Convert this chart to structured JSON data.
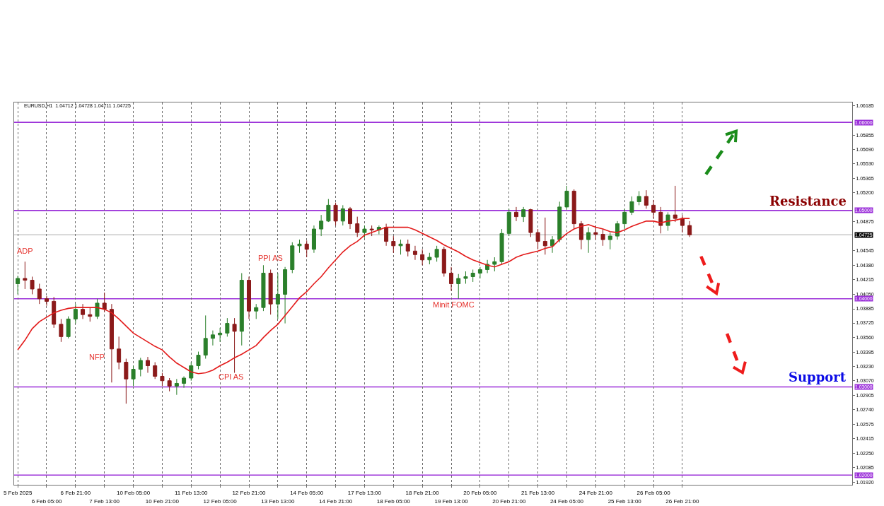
{
  "chart_data": {
    "type": "candlestick",
    "title": "EURUSD,H1  1.04712 1.04728 1.04711 1.04725",
    "categories": [
      "5 Feb 2025",
      null,
      null,
      null,
      "6 Feb 05:00",
      null,
      null,
      null,
      "6 Feb 21:00",
      null,
      null,
      null,
      "7 Feb 13:00",
      null,
      null,
      null,
      "10 Feb 05:00",
      null,
      null,
      null,
      "10 Feb 21:00",
      null,
      null,
      null,
      "11 Feb 13:00",
      null,
      null,
      null,
      "12 Feb 05:00",
      null,
      null,
      null,
      "12 Feb 21:00",
      null,
      null,
      null,
      "13 Feb 13:00",
      null,
      null,
      null,
      "14 Feb 05:00",
      null,
      null,
      null,
      "14 Feb 21:00",
      null,
      null,
      null,
      "17 Feb 13:00",
      null,
      null,
      null,
      "18 Feb 05:00",
      null,
      null,
      null,
      "18 Feb 21:00",
      null,
      null,
      null,
      "19 Feb 13:00",
      null,
      null,
      null,
      "20 Feb 05:00",
      null,
      null,
      null,
      "20 Feb 21:00",
      null,
      null,
      null,
      "21 Feb 13:00",
      null,
      null,
      null,
      "24 Feb 05:00",
      null,
      null,
      null,
      "24 Feb 21:00",
      null,
      null,
      null,
      "25 Feb 13:00",
      null,
      null,
      null,
      "26 Feb 05:00",
      null,
      null,
      null,
      "26 Feb 21:00",
      null,
      null,
      null,
      null,
      null,
      null,
      null,
      null,
      null,
      null,
      null,
      null,
      null,
      null,
      null,
      null,
      null,
      null,
      null,
      null,
      null,
      null,
      null
    ],
    "ylim": [
      1.0189,
      1.06225
    ],
    "yticks": [
      1.06185,
      1.05855,
      {
        "value": 1.0569,
        "label": "1.05690"
      },
      {
        "value": 1.0553,
        "label": "1.05530"
      },
      1.05365,
      {
        "value": 1.052,
        "label": "1.05200"
      },
      1.04875,
      1.04545,
      {
        "value": 1.0438,
        "label": "1.04380"
      },
      1.04215,
      {
        "value": 1.0405,
        "label": "1.04050"
      },
      1.03885,
      1.03725,
      {
        "value": 1.0356,
        "label": "1.03560"
      },
      1.03395,
      {
        "value": 1.0323,
        "label": "1.03230"
      },
      {
        "value": 1.0307,
        "label": "1.03070"
      },
      1.02905,
      {
        "value": 1.0274,
        "label": "1.02740"
      },
      1.02575,
      1.02415,
      {
        "value": 1.0225,
        "label": "1.02250"
      },
      1.02085,
      {
        "value": 1.0192,
        "label": "1.01920"
      }
    ],
    "ohlc": [
      [
        1.0417,
        1.0426,
        1.0405,
        1.0423
      ],
      [
        1.0423,
        1.0442,
        1.0411,
        1.0421
      ],
      [
        1.0421,
        1.0425,
        1.0405,
        1.0411
      ],
      [
        1.0411,
        1.0417,
        1.0394,
        1.04
      ],
      [
        1.04,
        1.0403,
        1.0392,
        1.0397
      ],
      [
        1.0397,
        1.0402,
        1.0367,
        1.0371
      ],
      [
        1.0371,
        1.0377,
        1.0351,
        1.0357
      ],
      [
        1.0357,
        1.038,
        1.0355,
        1.0377
      ],
      [
        1.0377,
        1.0394,
        1.0372,
        1.0388
      ],
      [
        1.0388,
        1.0394,
        1.0377,
        1.0382
      ],
      [
        1.0382,
        1.039,
        1.0374,
        1.038
      ],
      [
        1.038,
        1.04,
        1.0377,
        1.0395
      ],
      [
        1.0395,
        1.0407,
        1.0385,
        1.0388
      ],
      [
        1.0388,
        1.0394,
        1.0305,
        1.0343
      ],
      [
        1.0343,
        1.0357,
        1.032,
        1.0328
      ],
      [
        1.0328,
        1.0332,
        1.0281,
        1.0309
      ],
      [
        1.0309,
        1.0324,
        1.0301,
        1.032
      ],
      [
        1.032,
        1.0333,
        1.0312,
        1.033
      ],
      [
        1.033,
        1.0334,
        1.0316,
        1.0324
      ],
      [
        1.0324,
        1.0328,
        1.0309,
        1.0312
      ],
      [
        1.0312,
        1.0316,
        1.0301,
        1.0307
      ],
      [
        1.0307,
        1.031,
        1.0295,
        1.0301
      ],
      [
        1.0301,
        1.0309,
        1.0291,
        1.0304
      ],
      [
        1.0304,
        1.0312,
        1.0299,
        1.031
      ],
      [
        1.031,
        1.0328,
        1.0307,
        1.0324
      ],
      [
        1.0324,
        1.034,
        1.032,
        1.0336
      ],
      [
        1.0336,
        1.0381,
        1.0332,
        1.0355
      ],
      [
        1.0355,
        1.0364,
        1.0347,
        1.0359
      ],
      [
        1.0359,
        1.0367,
        1.0351,
        1.0361
      ],
      [
        1.0361,
        1.0378,
        1.0357,
        1.0372
      ],
      [
        1.0371,
        1.0378,
        1.0316,
        1.0363
      ],
      [
        1.0363,
        1.0429,
        1.0347,
        1.0421
      ],
      [
        1.0421,
        1.0425,
        1.0377,
        1.0386
      ],
      [
        1.0386,
        1.0394,
        1.0377,
        1.039
      ],
      [
        1.039,
        1.0438,
        1.0386,
        1.0429
      ],
      [
        1.0429,
        1.0433,
        1.0382,
        1.0394
      ],
      [
        1.0394,
        1.0429,
        1.0377,
        1.0405
      ],
      [
        1.0405,
        1.0436,
        1.0372,
        1.0433
      ],
      [
        1.0433,
        1.0464,
        1.0429,
        1.046
      ],
      [
        1.046,
        1.0467,
        1.0452,
        1.0462
      ],
      [
        1.0462,
        1.0466,
        1.0447,
        1.0456
      ],
      [
        1.0456,
        1.0483,
        1.0452,
        1.0479
      ],
      [
        1.0479,
        1.0495,
        1.0471,
        1.0488
      ],
      [
        1.0488,
        1.0513,
        1.0487,
        1.0506
      ],
      [
        1.0506,
        1.0509,
        1.0483,
        1.0488
      ],
      [
        1.0488,
        1.0506,
        1.0483,
        1.0502
      ],
      [
        1.0502,
        1.0504,
        1.0479,
        1.0485
      ],
      [
        1.0485,
        1.0493,
        1.047,
        1.0475
      ],
      [
        1.0475,
        1.0483,
        1.0469,
        1.0479
      ],
      [
        1.0479,
        1.0483,
        1.0471,
        1.0478
      ],
      [
        1.0478,
        1.0483,
        1.0473,
        1.0481
      ],
      [
        1.0481,
        1.0485,
        1.046,
        1.0465
      ],
      [
        1.0465,
        1.0471,
        1.0452,
        1.046
      ],
      [
        1.046,
        1.0467,
        1.045,
        1.0462
      ],
      [
        1.0462,
        1.0467,
        1.0448,
        1.0454
      ],
      [
        1.0454,
        1.046,
        1.0444,
        1.045
      ],
      [
        1.045,
        1.0456,
        1.0438,
        1.0444
      ],
      [
        1.0444,
        1.0452,
        1.0439,
        1.0447
      ],
      [
        1.0447,
        1.046,
        1.0442,
        1.0456
      ],
      [
        1.0456,
        1.0459,
        1.0425,
        1.0429
      ],
      [
        1.0429,
        1.0436,
        1.0409,
        1.0417
      ],
      [
        1.0417,
        1.0428,
        1.04,
        1.0423
      ],
      [
        1.0423,
        1.0431,
        1.0417,
        1.0425
      ],
      [
        1.0425,
        1.0433,
        1.0419,
        1.0429
      ],
      [
        1.0429,
        1.0436,
        1.0423,
        1.0433
      ],
      [
        1.0433,
        1.0444,
        1.0429,
        1.0439
      ],
      [
        1.0439,
        1.0447,
        1.0431,
        1.0442
      ],
      [
        1.0442,
        1.0479,
        1.0439,
        1.0474
      ],
      [
        1.0474,
        1.0502,
        1.0471,
        1.0498
      ],
      [
        1.0498,
        1.0504,
        1.0488,
        1.0493
      ],
      [
        1.0493,
        1.0504,
        1.0487,
        1.0501
      ],
      [
        1.0501,
        1.0502,
        1.047,
        1.0475
      ],
      [
        1.0475,
        1.0479,
        1.0456,
        1.0465
      ],
      [
        1.0465,
        1.0492,
        1.045,
        1.046
      ],
      [
        1.046,
        1.0471,
        1.0452,
        1.0467
      ],
      [
        1.0467,
        1.051,
        1.0464,
        1.0504
      ],
      [
        1.0504,
        1.0528,
        1.0502,
        1.0522
      ],
      [
        1.0522,
        1.0524,
        1.0479,
        1.0485
      ],
      [
        1.0485,
        1.0488,
        1.0456,
        1.0467
      ],
      [
        1.0467,
        1.0481,
        1.0452,
        1.0475
      ],
      [
        1.0475,
        1.0483,
        1.0467,
        1.0473
      ],
      [
        1.0473,
        1.0479,
        1.046,
        1.0467
      ],
      [
        1.0467,
        1.0475,
        1.0456,
        1.0471
      ],
      [
        1.0471,
        1.0488,
        1.0467,
        1.0485
      ],
      [
        1.0485,
        1.0502,
        1.0479,
        1.0498
      ],
      [
        1.0498,
        1.0516,
        1.0495,
        1.051
      ],
      [
        1.051,
        1.0522,
        1.0506,
        1.0516
      ],
      [
        1.0516,
        1.0523,
        1.0502,
        1.0506
      ],
      [
        1.0506,
        1.0512,
        1.0491,
        1.0498
      ],
      [
        1.0498,
        1.0504,
        1.0474,
        1.0483
      ],
      [
        1.0483,
        1.0498,
        1.0477,
        1.0495
      ],
      [
        1.0495,
        1.0528,
        1.0487,
        1.0491
      ],
      [
        1.0491,
        1.0495,
        1.0475,
        1.0483
      ],
      [
        1.0483,
        1.0488,
        1.047,
        1.04725
      ],
      null,
      null,
      null,
      null,
      null,
      null,
      null,
      null,
      null,
      null,
      null,
      null,
      null,
      null,
      null,
      null,
      null,
      null,
      null,
      null,
      null,
      null
    ],
    "colors": [
      "#2a7f2a",
      "#8b1a1a",
      "#8b1a1a",
      "#8b1a1a",
      "#8b1a1a",
      "#8b1a1a",
      "#8b1a1a",
      "#2a7f2a",
      "#2a7f2a",
      "#8b1a1a",
      "#8b1a1a",
      "#2a7f2a",
      "#8b1a1a",
      "#8b1a1a",
      "#8b1a1a",
      "#8b1a1a",
      "#2a7f2a",
      "#2a7f2a",
      "#8b1a1a",
      "#8b1a1a",
      "#8b1a1a",
      "#8b1a1a",
      "#2a7f2a",
      "#2a7f2a",
      "#2a7f2a",
      "#2a7f2a",
      "#2a7f2a",
      "#2a7f2a",
      "#2a7f2a",
      "#2a7f2a",
      "#8b1a1a",
      "#2a7f2a",
      "#8b1a1a",
      "#2a7f2a",
      "#2a7f2a",
      "#8b1a1a",
      "#2a7f2a",
      "#2a7f2a",
      "#2a7f2a",
      "#2a7f2a",
      "#8b1a1a",
      "#2a7f2a",
      "#2a7f2a",
      "#2a7f2a",
      "#8b1a1a",
      "#2a7f2a",
      "#8b1a1a",
      "#8b1a1a",
      "#2a7f2a",
      "#8b1a1a",
      "#2a7f2a",
      "#8b1a1a",
      "#8b1a1a",
      "#2a7f2a",
      "#8b1a1a",
      "#8b1a1a",
      "#8b1a1a",
      "#2a7f2a",
      "#2a7f2a",
      "#8b1a1a",
      "#8b1a1a",
      "#2a7f2a",
      "#2a7f2a",
      "#2a7f2a",
      "#2a7f2a",
      "#2a7f2a",
      "#2a7f2a",
      "#2a7f2a",
      "#2a7f2a",
      "#8b1a1a",
      "#2a7f2a",
      "#8b1a1a",
      "#8b1a1a",
      "#8b1a1a",
      "#2a7f2a",
      "#2a7f2a",
      "#2a7f2a",
      "#8b1a1a",
      "#8b1a1a",
      "#2a7f2a",
      "#8b1a1a",
      "#8b1a1a",
      "#2a7f2a",
      "#2a7f2a",
      "#2a7f2a",
      "#2a7f2a",
      "#2a7f2a",
      "#8b1a1a",
      "#8b1a1a",
      "#8b1a1a",
      "#2a7f2a",
      "#8b1a1a",
      "#8b1a1a",
      "#8b1a1a",
      null,
      null,
      null,
      null,
      null,
      null,
      null,
      null,
      null,
      null,
      null,
      null,
      null,
      null,
      null,
      null,
      null,
      null,
      null,
      null,
      null,
      null
    ],
    "series": [
      {
        "type": "line",
        "color": "#e31b1b",
        "values": [
          1.0342,
          1.0353,
          1.0366,
          1.0374,
          1.0379,
          1.0384,
          1.0387,
          1.0389,
          1.039,
          1.039,
          1.039,
          1.039,
          1.0388,
          1.0384,
          1.0377,
          1.0369,
          1.0361,
          1.0356,
          1.0351,
          1.0346,
          1.0342,
          1.0334,
          1.0327,
          1.0322,
          1.0317,
          1.0315,
          1.0316,
          1.0319,
          1.0324,
          1.0328,
          1.0333,
          1.0337,
          1.0342,
          1.0347,
          1.0356,
          1.0364,
          1.0371,
          1.0381,
          1.0391,
          1.0401,
          1.0408,
          1.0417,
          1.0425,
          1.0435,
          1.0444,
          1.0453,
          1.046,
          1.0465,
          1.0472,
          1.0475,
          1.0478,
          1.0481,
          1.0481,
          1.0481,
          1.0481,
          1.0478,
          1.0474,
          1.047,
          1.0466,
          1.0461,
          1.0457,
          1.0453,
          1.0448,
          1.0444,
          1.0441,
          1.0438,
          1.0436,
          1.0439,
          1.0442,
          1.0447,
          1.045,
          1.0452,
          1.0454,
          1.0457,
          1.0459,
          1.0467,
          1.0474,
          1.0479,
          1.0482,
          1.0484,
          1.0481,
          1.0479,
          1.0476,
          1.0475,
          1.0478,
          1.0482,
          1.0485,
          1.0488,
          1.0488,
          1.0486,
          1.0488,
          1.0489,
          1.0491,
          1.0491,
          null,
          null,
          null,
          null,
          null,
          null,
          null,
          null,
          null,
          null,
          null,
          null,
          null,
          null,
          null,
          null,
          null,
          null,
          null,
          null,
          null,
          null
        ]
      }
    ],
    "ref_lines": [
      {
        "axis": "y",
        "value": 1.06,
        "label": "1.06000",
        "color": "#9b30d9"
      },
      {
        "axis": "y",
        "value": 1.05,
        "label": "1.05000",
        "color": "#9b30d9"
      },
      {
        "axis": "y",
        "value": 1.04,
        "label": "1.04000",
        "color": "#9b30d9"
      },
      {
        "axis": "y",
        "value": 1.03,
        "label": "1.03000",
        "color": "#9b30d9"
      },
      {
        "axis": "y",
        "value": 1.02,
        "label": "1.02000",
        "color": "#9b30d9"
      },
      {
        "axis": "y",
        "value": 1.04725,
        "label": "1.04725",
        "color": "#c8c8c8"
      }
    ],
    "annotations": [
      "ADP",
      "NFP",
      "CPI AS",
      "PPI AS",
      "Minit FOMC",
      "Resistance",
      "Support"
    ],
    "grid": "x"
  }
}
